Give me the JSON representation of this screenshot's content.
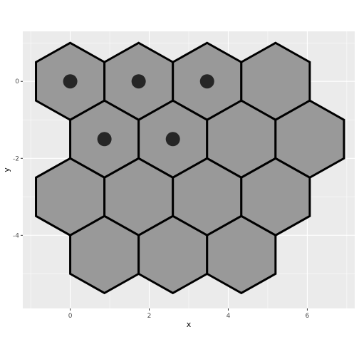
{
  "chart_data": {
    "type": "scatter",
    "xlabel": "x",
    "ylabel": "y",
    "xlim": [
      -1.2,
      7.2
    ],
    "ylim": [
      -5.9,
      1.3
    ],
    "x_ticks": [
      0,
      2,
      4,
      6
    ],
    "x_tick_labels": [
      "0",
      "2",
      "4",
      "6"
    ],
    "y_ticks": [
      0,
      -2,
      -4
    ],
    "y_tick_labels": [
      "0",
      "-2",
      "-4"
    ],
    "grid": true,
    "hexagon_radius": 1,
    "hexagons": [
      {
        "x": 0,
        "y": 0
      },
      {
        "x": 1.732,
        "y": 0
      },
      {
        "x": 3.464,
        "y": 0
      },
      {
        "x": 5.196,
        "y": 0
      },
      {
        "x": 0.866,
        "y": -1.5
      },
      {
        "x": 2.598,
        "y": -1.5
      },
      {
        "x": 4.33,
        "y": -1.5
      },
      {
        "x": 6.062,
        "y": -1.5
      },
      {
        "x": 0,
        "y": -3
      },
      {
        "x": 1.732,
        "y": -3
      },
      {
        "x": 3.464,
        "y": -3
      },
      {
        "x": 5.196,
        "y": -3
      },
      {
        "x": 0.866,
        "y": -4.5
      },
      {
        "x": 2.598,
        "y": -4.5
      },
      {
        "x": 4.33,
        "y": -4.5
      }
    ],
    "points": [
      {
        "x": 0,
        "y": 0
      },
      {
        "x": 1.732,
        "y": 0
      },
      {
        "x": 3.464,
        "y": 0
      },
      {
        "x": 0.866,
        "y": -1.5
      },
      {
        "x": 2.598,
        "y": -1.5
      }
    ],
    "colors": {
      "panel_bg": "#ebebeb",
      "grid_major": "#ffffff",
      "hex_fill": "#999999",
      "hex_stroke": "#000000",
      "point": "#262626"
    }
  }
}
